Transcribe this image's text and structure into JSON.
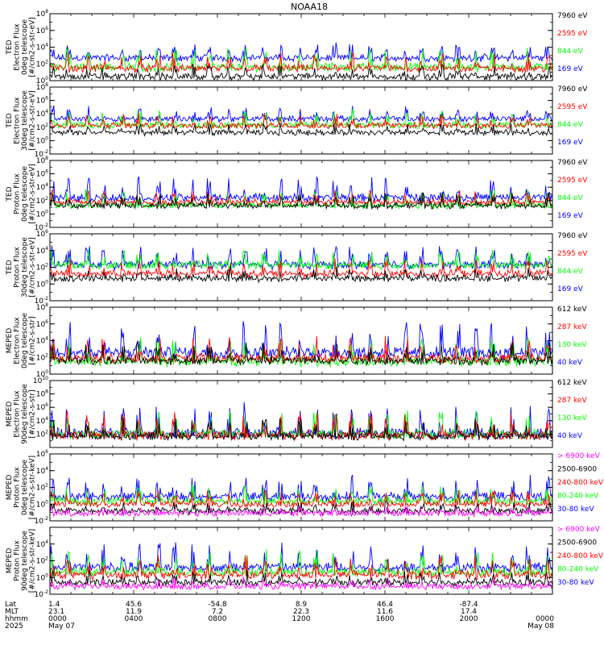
{
  "title": "NOAA18",
  "colors": {
    "black": "#000000",
    "red": "#ff0000",
    "green": "#00ff00",
    "blue": "#0000ff",
    "magenta": "#ff00ff"
  },
  "chart_data": [
    {
      "type": "line",
      "ylabel": [
        "TED",
        "Electron Flux",
        "0deg telescope",
        "[#/cm2-s-str-eV]"
      ],
      "ylim_exp": [
        0,
        8
      ],
      "tick_exps": [
        0,
        2,
        4,
        6,
        8
      ],
      "scale": "log",
      "legend": [
        {
          "label": "7960 eV",
          "color": "black"
        },
        {
          "label": "2595 eV",
          "color": "red"
        },
        {
          "label": "844 eV",
          "color": "green"
        },
        {
          "label": "169 eV",
          "color": "blue"
        }
      ],
      "series": [
        {
          "color": "blue",
          "base": 2.5,
          "amp": 1.8
        },
        {
          "color": "green",
          "base": 1.3,
          "amp": 2.5
        },
        {
          "color": "red",
          "base": 1.2,
          "amp": 2.0
        },
        {
          "color": "black",
          "base": 0.3,
          "amp": 1.5
        }
      ]
    },
    {
      "type": "line",
      "ylabel": [
        "TED",
        "Electron Flux",
        "30deg telescope",
        "[#/cm2-s-str-eV]"
      ],
      "ylim_exp": [
        -2,
        8
      ],
      "tick_exps": [
        -2,
        0,
        2,
        4,
        6,
        8
      ],
      "scale": "log",
      "legend": [
        {
          "label": "7960 eV",
          "color": "black"
        },
        {
          "label": "2595 eV",
          "color": "red"
        },
        {
          "label": "844 eV",
          "color": "green"
        },
        {
          "label": "169 eV",
          "color": "blue"
        }
      ],
      "series": [
        {
          "color": "blue",
          "base": 3.0,
          "amp": 2.0
        },
        {
          "color": "green",
          "base": 2.0,
          "amp": 2.5
        },
        {
          "color": "red",
          "base": 2.0,
          "amp": 2.0
        },
        {
          "color": "black",
          "base": 1.0,
          "amp": 1.5
        }
      ]
    },
    {
      "type": "line",
      "ylabel": [
        "TED",
        "Proton Flux",
        "0deg telescope",
        "[#/cm2-s-str-eV]"
      ],
      "ylim_exp": [
        -2,
        8
      ],
      "tick_exps": [
        -2,
        0,
        2,
        4,
        6,
        8
      ],
      "scale": "log",
      "legend": [
        {
          "label": "7960 eV",
          "color": "black"
        },
        {
          "label": "2595 eV",
          "color": "red"
        },
        {
          "label": "844 eV",
          "color": "green"
        },
        {
          "label": "169 eV",
          "color": "blue"
        }
      ],
      "series": [
        {
          "color": "blue",
          "base": 2.0,
          "amp": 3.5
        },
        {
          "color": "green",
          "base": 1.0,
          "amp": 2.5
        },
        {
          "color": "red",
          "base": 1.5,
          "amp": 2.0
        },
        {
          "color": "black",
          "base": 1.0,
          "amp": 2.0
        }
      ]
    },
    {
      "type": "line",
      "ylabel": [
        "TED",
        "Proton Flux",
        "30deg telescope",
        "[#/cm2-s-str-eV]"
      ],
      "ylim_exp": [
        -2,
        6
      ],
      "tick_exps": [
        -2,
        0,
        2,
        4,
        6
      ],
      "scale": "log",
      "legend": [
        {
          "label": "7960 eV",
          "color": "black"
        },
        {
          "label": "2595 eV",
          "color": "red"
        },
        {
          "label": "844 eV",
          "color": "green"
        },
        {
          "label": "169 eV",
          "color": "blue"
        }
      ],
      "series": [
        {
          "color": "blue",
          "base": 2.0,
          "amp": 2.5
        },
        {
          "color": "green",
          "base": 2.0,
          "amp": 2.0
        },
        {
          "color": "red",
          "base": 1.0,
          "amp": 1.8
        },
        {
          "color": "black",
          "base": 0.5,
          "amp": 1.5
        }
      ]
    },
    {
      "type": "line",
      "ylabel": [
        "MEPED",
        "Electron Flux",
        "0deg telescope",
        "[#/cm2-s-str]"
      ],
      "ylim_exp": [
        0,
        8
      ],
      "tick_exps": [
        0,
        2,
        4,
        6,
        8
      ],
      "scale": "log",
      "legend": [
        {
          "label": "612 keV",
          "color": "black"
        },
        {
          "label": "287 keV",
          "color": "red"
        },
        {
          "label": "130 keV",
          "color": "green"
        },
        {
          "label": "40 keV",
          "color": "blue"
        }
      ],
      "series": [
        {
          "color": "blue",
          "base": 2.0,
          "amp": 4.5
        },
        {
          "color": "green",
          "base": 1.1,
          "amp": 3.0
        },
        {
          "color": "red",
          "base": 1.5,
          "amp": 3.0
        },
        {
          "color": "black",
          "base": 1.3,
          "amp": 2.5
        }
      ]
    },
    {
      "type": "line",
      "ylabel": [
        "MEPED",
        "Electron Flux",
        "90deg telescope",
        "[#/cm2-s-str]"
      ],
      "ylim_exp": [
        0,
        10
      ],
      "tick_exps": [
        2,
        4,
        6,
        8,
        10
      ],
      "scale": "log",
      "legend": [
        {
          "label": "612 keV",
          "color": "black"
        },
        {
          "label": "287 keV",
          "color": "red"
        },
        {
          "label": "130 keV",
          "color": "green"
        },
        {
          "label": "40 keV",
          "color": "blue"
        }
      ],
      "series": [
        {
          "color": "blue",
          "base": 1.5,
          "amp": 5.0
        },
        {
          "color": "green",
          "base": 1.5,
          "amp": 4.0
        },
        {
          "color": "red",
          "base": 1.3,
          "amp": 4.0
        },
        {
          "color": "black",
          "base": 1.3,
          "amp": 3.0
        }
      ]
    },
    {
      "type": "line",
      "ylabel": [
        "MEPED",
        "Proton Flux",
        "0deg telescope",
        "[#/cm2-s-str-keV]"
      ],
      "ylim_exp": [
        -2,
        6
      ],
      "tick_exps": [
        -2,
        0,
        2,
        4,
        6
      ],
      "scale": "log",
      "legend": [
        {
          "label": "> 6900 keV",
          "color": "magenta"
        },
        {
          "label": "2500-6900",
          "color": "black"
        },
        {
          "label": "240-800 keV",
          "color": "red"
        },
        {
          "label": "80-240 keV",
          "color": "green"
        },
        {
          "label": "30-80 keV",
          "color": "blue"
        }
      ],
      "series": [
        {
          "color": "blue",
          "base": 0.5,
          "amp": 3.0
        },
        {
          "color": "green",
          "base": 0.1,
          "amp": 2.0
        },
        {
          "color": "red",
          "base": -0.2,
          "amp": 1.8
        },
        {
          "color": "black",
          "base": -1.0,
          "amp": 1.2
        },
        {
          "color": "magenta",
          "base": -1.2,
          "amp": 0.8
        }
      ]
    },
    {
      "type": "line",
      "ylabel": [
        "MEPED",
        "Proton Flux",
        "90deg telescope",
        "[#/cm2-s-str-keV]"
      ],
      "ylim_exp": [
        -2,
        6
      ],
      "tick_exps": [
        -2,
        0,
        2,
        4
      ],
      "scale": "log",
      "legend": [
        {
          "label": "> 6900 keV",
          "color": "magenta"
        },
        {
          "label": "2500-6900",
          "color": "black"
        },
        {
          "label": "240-800 keV",
          "color": "red"
        },
        {
          "label": "80-240 keV",
          "color": "green"
        },
        {
          "label": "30-80 keV",
          "color": "blue"
        }
      ],
      "series": [
        {
          "color": "blue",
          "base": 0.8,
          "amp": 3.2
        },
        {
          "color": "green",
          "base": 0.3,
          "amp": 2.8
        },
        {
          "color": "red",
          "base": 0.0,
          "amp": 2.5
        },
        {
          "color": "black",
          "base": -0.8,
          "amp": 1.5
        },
        {
          "color": "magenta",
          "base": -1.2,
          "amp": 1.0
        }
      ]
    }
  ],
  "x_axis": {
    "row_labels": [
      "Lat",
      "MLT",
      "hhmm",
      "2025"
    ],
    "ticks": [
      {
        "lat": "1.4",
        "mlt": "23.1",
        "hhmm": "0000",
        "date": "May 07"
      },
      {
        "lat": "45.6",
        "mlt": "11.9",
        "hhmm": "0400",
        "date": ""
      },
      {
        "lat": "-54.8",
        "mlt": "7.2",
        "hhmm": "0800",
        "date": ""
      },
      {
        "lat": "8.9",
        "mlt": "22.3",
        "hhmm": "1200",
        "date": ""
      },
      {
        "lat": "46.4",
        "mlt": "11.6",
        "hhmm": "1600",
        "date": ""
      },
      {
        "lat": "-87.4",
        "mlt": "17.4",
        "hhmm": "2000",
        "date": ""
      },
      {
        "lat": "",
        "mlt": "",
        "hhmm": "0000",
        "date": "May 08"
      }
    ]
  }
}
